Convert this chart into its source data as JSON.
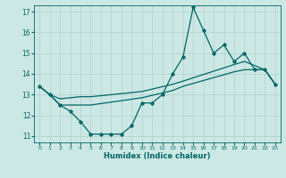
{
  "xlabel": "Humidex (Indice chaleur)",
  "background_color": "#cce8e4",
  "grid_color": "#aed0cc",
  "line_color": "#006666",
  "xlim": [
    -0.5,
    23.5
  ],
  "ylim": [
    10.7,
    17.3
  ],
  "yticks": [
    11,
    12,
    13,
    14,
    15,
    16,
    17
  ],
  "xticks": [
    0,
    1,
    2,
    3,
    4,
    5,
    6,
    7,
    8,
    9,
    10,
    11,
    12,
    13,
    14,
    15,
    16,
    17,
    18,
    19,
    20,
    21,
    22,
    23
  ],
  "series1_x": [
    0,
    1,
    2,
    3,
    4,
    5,
    6,
    7,
    8,
    9,
    10,
    11,
    12,
    13,
    14,
    15,
    16,
    17,
    18,
    19,
    20,
    21,
    22,
    23
  ],
  "series1_y": [
    13.4,
    13.0,
    12.5,
    12.2,
    11.7,
    11.1,
    11.1,
    11.1,
    11.1,
    11.5,
    12.6,
    12.6,
    13.0,
    14.0,
    14.8,
    17.2,
    16.1,
    15.0,
    15.4,
    14.6,
    15.0,
    14.2,
    14.2,
    13.5
  ],
  "series2_x": [
    0,
    1,
    2,
    3,
    4,
    5,
    10,
    13,
    14,
    19,
    20,
    22,
    23
  ],
  "series2_y": [
    13.4,
    13.0,
    12.8,
    12.85,
    12.9,
    12.9,
    13.15,
    13.5,
    13.65,
    14.45,
    14.6,
    14.2,
    13.5
  ],
  "series3_x": [
    0,
    1,
    2,
    3,
    4,
    5,
    10,
    13,
    14,
    19,
    20,
    22,
    23
  ],
  "series3_y": [
    13.4,
    13.0,
    12.5,
    12.5,
    12.5,
    12.5,
    12.85,
    13.2,
    13.4,
    14.1,
    14.2,
    14.2,
    13.5
  ]
}
